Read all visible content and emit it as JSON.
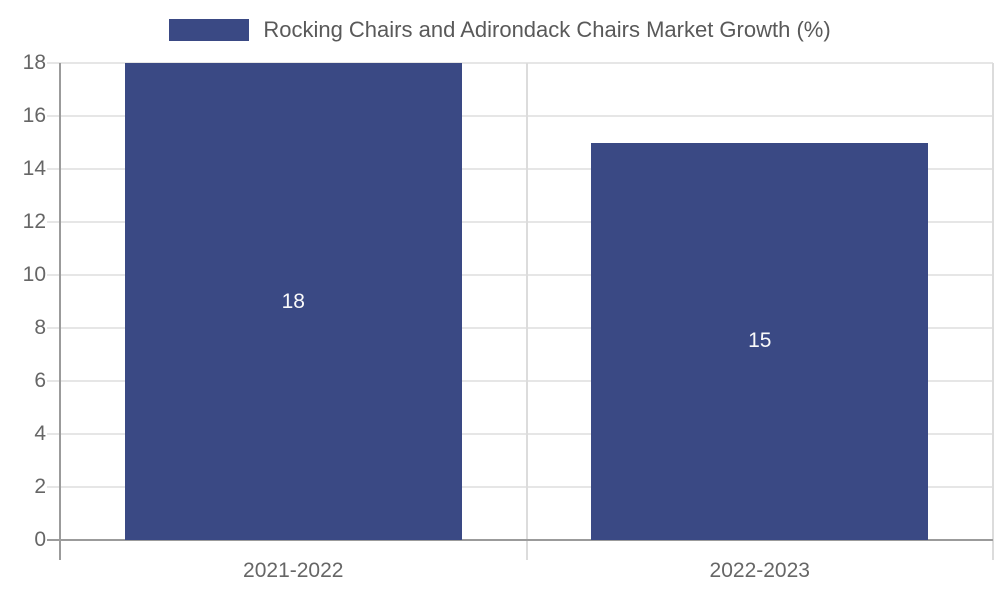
{
  "chart_data": {
    "type": "bar",
    "title": "Rocking Chairs and Adirondack Chairs Market Growth (%)",
    "categories": [
      "2021-2022",
      "2022-2023"
    ],
    "values": [
      18,
      15
    ],
    "data_labels": [
      "18",
      "15"
    ],
    "ytick_labels": [
      "0",
      "2",
      "4",
      "6",
      "8",
      "10",
      "12",
      "14",
      "16",
      "18"
    ],
    "ylim": [
      0,
      18
    ],
    "ytick_step": 2,
    "grid": "horizontal",
    "legend_position": "top-center",
    "xlabel": "",
    "ylabel": "",
    "colors": {
      "bar": "#3A4984",
      "bar_label_text": "#fafafa",
      "title_text": "#595959",
      "axis_text": "#666666",
      "gridline": "#e6e6e6",
      "axis_line": "#9b9b9b",
      "category_separator": "#dcdcdc"
    }
  }
}
